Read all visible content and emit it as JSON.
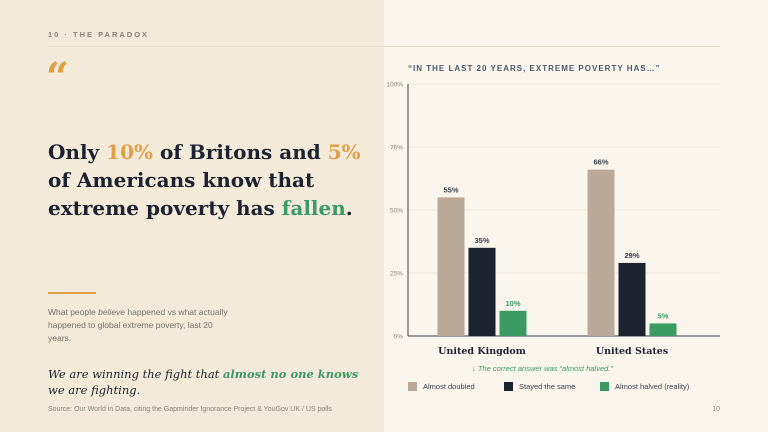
{
  "slide": {
    "label": "10 · THE PARADOX",
    "page_number": "10"
  },
  "quote_mark": "“",
  "headline": {
    "p1": "Only ",
    "h1": "10%",
    "p2": " of Britons and ",
    "h2": "5%",
    "p3": " of Americans know that extreme poverty has ",
    "h3": "fallen",
    "p4": "."
  },
  "subtext": {
    "a": "What people ",
    "b": "believe",
    "c": " happened vs what actually happened to global extreme poverty, last 20 years."
  },
  "fight": {
    "a": "We are winning the fight that ",
    "b": "almost no one knows",
    "c": " we are fighting."
  },
  "source": "Source: Our World in Data, citing the Gapminder Ignorance Project & YouGov UK / US polls",
  "correct_answer_note": "↓ The correct answer was “almost halved.”",
  "chart_data": {
    "type": "bar",
    "title": "“IN THE LAST 20 YEARS, EXTREME POVERTY HAS…”",
    "categories": [
      "United Kingdom",
      "United States"
    ],
    "series": [
      {
        "name": "Almost doubled",
        "values": [
          55,
          66
        ],
        "color": "#baa999"
      },
      {
        "name": "Stayed the same",
        "values": [
          35,
          29
        ],
        "color": "#1d2230"
      },
      {
        "name": "Almost halved (reality)",
        "values": [
          10,
          5
        ],
        "color": "#3c9a63"
      }
    ],
    "value_labels": [
      [
        "55%",
        "66%"
      ],
      [
        "35%",
        "29%"
      ],
      [
        "10%",
        "5%"
      ]
    ],
    "yticks": [
      "0%",
      "25%",
      "50%",
      "75%",
      "100%"
    ],
    "ylim": [
      0,
      100
    ],
    "grid": true,
    "legend": "bottom"
  }
}
